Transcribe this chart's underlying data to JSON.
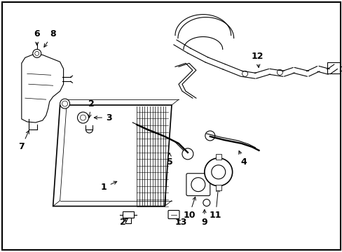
{
  "background_color": "#ffffff",
  "border_color": "#000000",
  "text_color": "#000000",
  "fig_width": 4.89,
  "fig_height": 3.6,
  "dpi": 100
}
